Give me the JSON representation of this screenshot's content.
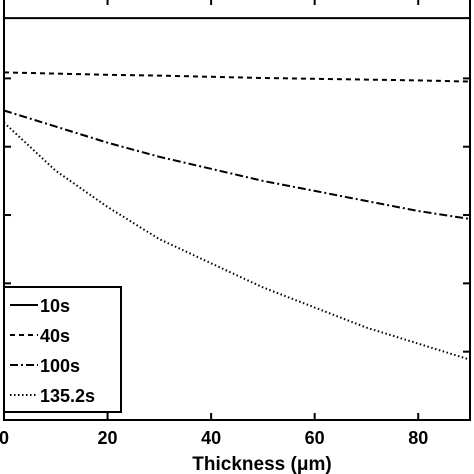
{
  "chart_data": {
    "type": "line",
    "title": "",
    "xlabel": "Thickness (μm)",
    "ylabel": "",
    "xlim": [
      0,
      90
    ],
    "ylim": [
      0,
      1.05
    ],
    "x_ticks": [
      0,
      20,
      40,
      60,
      80
    ],
    "x_tick_labels": [
      "0",
      "20",
      "40",
      "60",
      "80"
    ],
    "y_ticks": [
      0.17,
      0.34,
      0.51,
      0.68,
      0.85
    ],
    "grid": false,
    "legend_position": "bottom-left",
    "series": [
      {
        "name": "10s",
        "style": "solid",
        "x": [
          0,
          10,
          20,
          30,
          40,
          50,
          60,
          70,
          80,
          90
        ],
        "y": [
          1.0,
          1.0,
          1.0,
          1.0,
          1.0,
          1.0,
          1.0,
          1.0,
          1.0,
          1.0
        ]
      },
      {
        "name": "40s",
        "style": "dashed",
        "x": [
          0,
          10,
          20,
          30,
          40,
          50,
          60,
          70,
          80,
          90
        ],
        "y": [
          0.865,
          0.862,
          0.859,
          0.857,
          0.854,
          0.851,
          0.849,
          0.847,
          0.845,
          0.842
        ]
      },
      {
        "name": "100s",
        "style": "dashdot",
        "x": [
          0,
          10,
          20,
          30,
          40,
          50,
          60,
          70,
          80,
          90
        ],
        "y": [
          0.77,
          0.73,
          0.69,
          0.655,
          0.625,
          0.595,
          0.57,
          0.545,
          0.52,
          0.5
        ]
      },
      {
        "name": "135.2s",
        "style": "dotted",
        "x": [
          0,
          10,
          20,
          30,
          40,
          50,
          60,
          70,
          80,
          90
        ],
        "y": [
          0.74,
          0.62,
          0.53,
          0.45,
          0.39,
          0.33,
          0.28,
          0.23,
          0.19,
          0.15
        ]
      }
    ]
  }
}
